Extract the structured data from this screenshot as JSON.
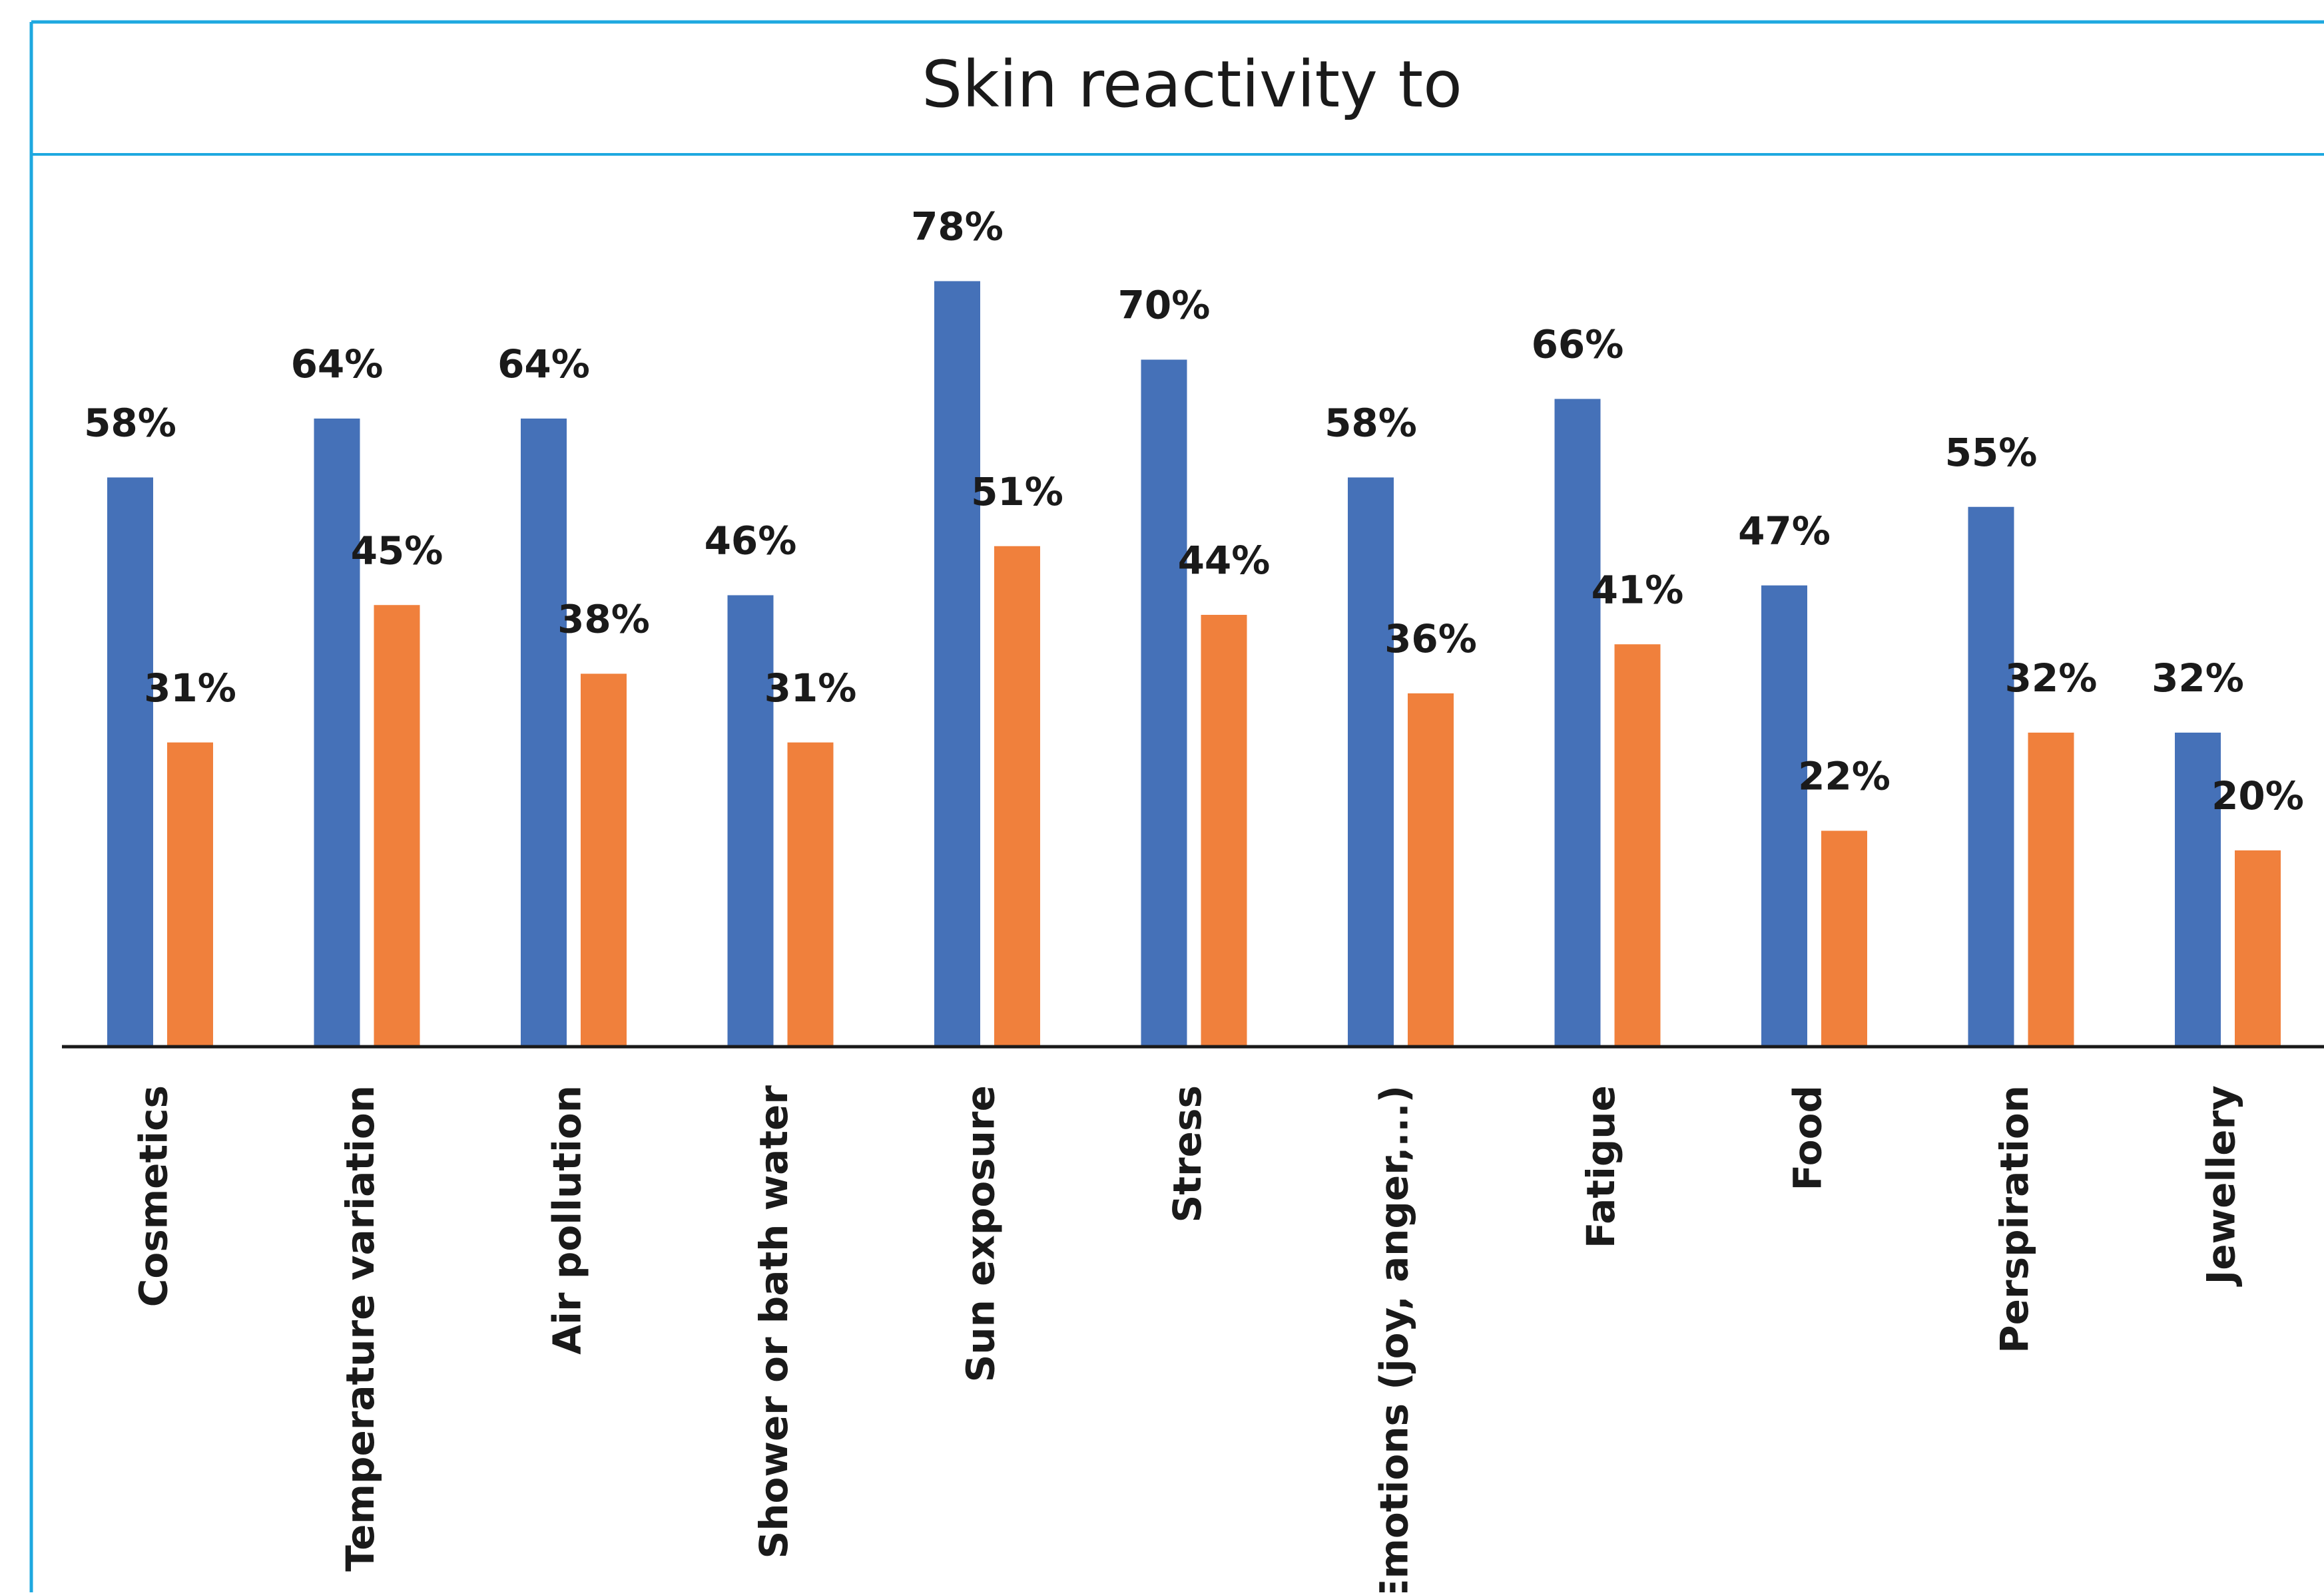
{
  "chart_data": {
    "type": "bar",
    "title": "Skin reactivity to",
    "xlabel": "",
    "ylabel": "",
    "ylim": [
      0,
      100
    ],
    "grid": false,
    "legend": "none",
    "categories": [
      "Cosmetics",
      "Temperature variation",
      "Air pollution",
      "Shower or bath water",
      "Sun exposure",
      "Stress",
      "Emotions (joy, anger,...)",
      "Fatigue",
      "Food",
      "Perspiration",
      "Jewellery"
    ],
    "series": [
      {
        "color": "#4571b8",
        "values": [
          58,
          64,
          64,
          46,
          78,
          70,
          58,
          66,
          47,
          55,
          32
        ],
        "labels": [
          "58%",
          "64%",
          "64%",
          "46%",
          "78%",
          "70%",
          "58%",
          "66%",
          "47%",
          "55%",
          "32%"
        ]
      },
      {
        "color": "#f0803c",
        "values": [
          31,
          45,
          38,
          31,
          51,
          44,
          36,
          41,
          22,
          32,
          20
        ],
        "labels": [
          "31%",
          "45%",
          "38%",
          "31%",
          "51%",
          "44%",
          "36%",
          "41%",
          "22%",
          "32%",
          "20%"
        ]
      }
    ]
  },
  "frame_color": "#1ea8e0",
  "axis_color": "#1a1a1a",
  "text_color": "#1a1a1a"
}
